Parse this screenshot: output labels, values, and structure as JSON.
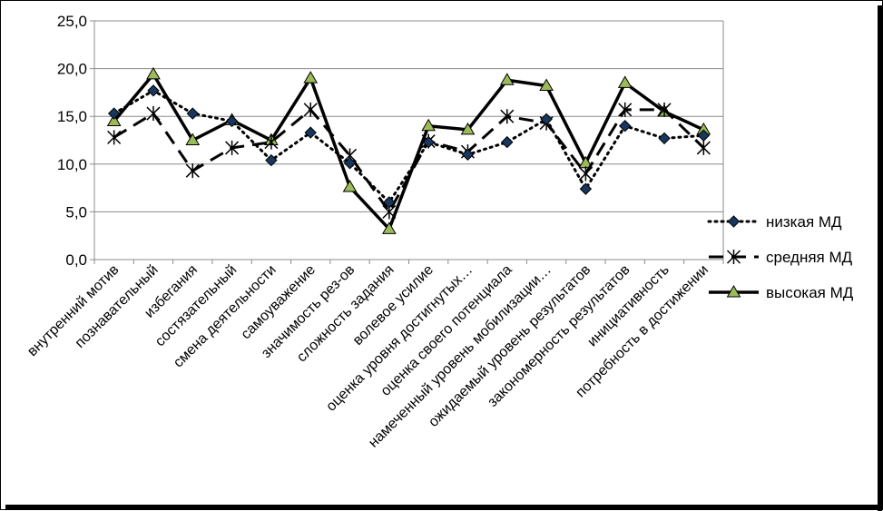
{
  "chart_data": {
    "type": "line",
    "title": "",
    "xlabel": "",
    "ylabel": "",
    "ylim": [
      0,
      25
    ],
    "yticks": [
      "0,0",
      "5,0",
      "10,0",
      "15,0",
      "20,0",
      "25,0"
    ],
    "grid": true,
    "legend_position": "right",
    "categories": [
      "внутренний мотив",
      "познавательный",
      "избегания",
      "состязательный",
      "смена деятельности",
      "самоуважение",
      "значимость рез-ов",
      "сложность задания",
      "волевое усилие",
      "оценка уровня достигнутых…",
      "оценка своего потенциала",
      "намеченный уровень мобилизации…",
      "ожидаемый уровень результатов",
      "закономерность результатов",
      "инициативность",
      "потребность в достижении"
    ],
    "series": [
      {
        "name": "низкая МД",
        "style": "dotted",
        "marker": "diamond",
        "color": "#000000",
        "marker_color": "#17375E",
        "values": [
          15.3,
          17.7,
          15.3,
          14.5,
          10.4,
          13.3,
          10.1,
          6.0,
          12.3,
          11.0,
          12.3,
          14.7,
          7.4,
          14.0,
          12.7,
          13.0
        ]
      },
      {
        "name": "средняя МД",
        "style": "dashed",
        "marker": "star",
        "color": "#000000",
        "marker_color": "#000000",
        "values": [
          12.8,
          15.3,
          9.3,
          11.7,
          12.3,
          15.7,
          10.9,
          5.0,
          12.4,
          11.3,
          15.0,
          14.3,
          9.0,
          15.7,
          15.7,
          11.7
        ]
      },
      {
        "name": "высокая МД",
        "style": "solid",
        "marker": "triangle",
        "color": "#000000",
        "marker_color": "#9BBB59",
        "values": [
          14.5,
          19.4,
          12.5,
          14.6,
          12.5,
          19.0,
          7.6,
          3.2,
          14.0,
          13.6,
          18.8,
          18.2,
          10.1,
          18.5,
          15.5,
          13.6
        ]
      }
    ]
  }
}
